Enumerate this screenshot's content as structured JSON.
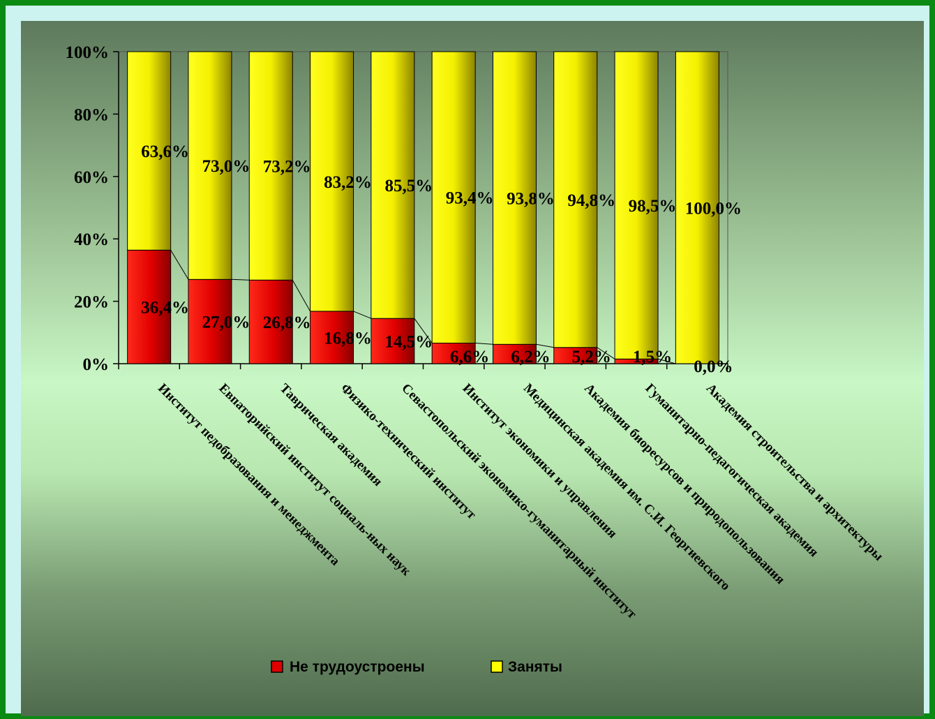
{
  "chart_data": {
    "type": "bar",
    "stacked": true,
    "percent": true,
    "categories": [
      "Институт педобразования и менеджмента",
      "Евпаторийский институт социаль-ных наук",
      "Таврическая академия",
      "Физико-технический институт",
      "Севастопольский экономико-гуманитарный институт",
      "Институт экономики и управления",
      "Медицинская академия им. С.И. Георгиевского",
      "Академия биоресурсов и природопользования",
      "Гуманитарно-педагогическая академия",
      "Академия строительства и архитектуры"
    ],
    "series": [
      {
        "name": "Не трудоустроены",
        "values": [
          36.4,
          27.0,
          26.8,
          16.8,
          14.5,
          6.6,
          6.2,
          5.2,
          1.5,
          0.0
        ],
        "labels": [
          "36,4%",
          "27,0%",
          "26,8%",
          "16,8%",
          "14,5%",
          "6,6%",
          "6,2%",
          "5,2%",
          "1,5%",
          "0,0%"
        ],
        "color": "#e00000"
      },
      {
        "name": "Заняты",
        "values": [
          63.6,
          73.0,
          73.2,
          83.2,
          85.5,
          93.4,
          93.8,
          94.8,
          98.5,
          100.0
        ],
        "labels": [
          "63,6%",
          "73,0%",
          "73,2%",
          "83,2%",
          "85,5%",
          "93,4%",
          "93,8%",
          "94,8%",
          "98,5%",
          "100,0%"
        ],
        "color": "#ffff00"
      }
    ],
    "yticks": [
      "0%",
      "20%",
      "40%",
      "60%",
      "80%",
      "100%"
    ],
    "ylim": [
      0,
      100
    ],
    "legend": "bottom",
    "series_lines": true,
    "grid": false
  }
}
